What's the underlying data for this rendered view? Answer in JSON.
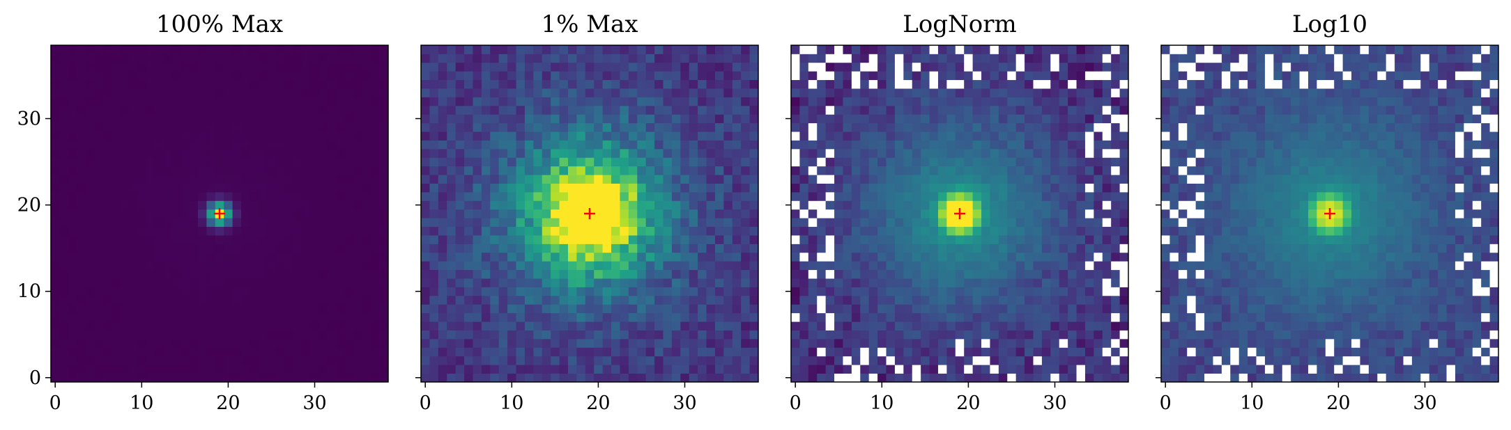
{
  "chart_data": [
    {
      "type": "heatmap",
      "title": "100% Max",
      "xlabel": "",
      "ylabel": "",
      "colormap": "viridis",
      "grid_size": [
        39,
        39
      ],
      "xlim": [
        -0.5,
        38.5
      ],
      "ylim": [
        -0.5,
        38.5
      ],
      "x_ticks": [
        0,
        10,
        20,
        30
      ],
      "y_ticks": [
        0,
        10,
        20,
        30
      ],
      "show_y_tick_labels": true,
      "grid": false,
      "peak_marker": {
        "x": 19,
        "y": 19,
        "symbol": "+",
        "color": "#ff0000"
      },
      "normalization": "linear, clipped at 100% of max"
    },
    {
      "type": "heatmap",
      "title": "1% Max",
      "xlabel": "",
      "ylabel": "",
      "colormap": "viridis",
      "grid_size": [
        39,
        39
      ],
      "xlim": [
        -0.5,
        38.5
      ],
      "ylim": [
        -0.5,
        38.5
      ],
      "x_ticks": [
        0,
        10,
        20,
        30
      ],
      "y_ticks": [
        0,
        10,
        20,
        30
      ],
      "show_y_tick_labels": false,
      "grid": false,
      "peak_marker": {
        "x": 19,
        "y": 19,
        "symbol": "+",
        "color": "#ff0000"
      },
      "normalization": "linear, clipped at 1% of max"
    },
    {
      "type": "heatmap",
      "title": "LogNorm",
      "xlabel": "",
      "ylabel": "",
      "colormap": "viridis",
      "grid_size": [
        39,
        39
      ],
      "xlim": [
        -0.5,
        38.5
      ],
      "ylim": [
        -0.5,
        38.5
      ],
      "x_ticks": [
        0,
        10,
        20,
        30
      ],
      "y_ticks": [
        0,
        10,
        20,
        30
      ],
      "show_y_tick_labels": false,
      "grid": false,
      "peak_marker": {
        "x": 19,
        "y": 19,
        "symbol": "+",
        "color": "#ff0000"
      },
      "normalization": "logarithmic; non-positive pixels shown as white"
    },
    {
      "type": "heatmap",
      "title": "Log10",
      "xlabel": "",
      "ylabel": "",
      "colormap": "viridis",
      "grid_size": [
        39,
        39
      ],
      "xlim": [
        -0.5,
        38.5
      ],
      "ylim": [
        -0.5,
        38.5
      ],
      "x_ticks": [
        0,
        10,
        20,
        30
      ],
      "y_ticks": [
        0,
        10,
        20,
        30
      ],
      "show_y_tick_labels": false,
      "grid": false,
      "peak_marker": {
        "x": 19,
        "y": 19,
        "symbol": "+",
        "color": "#ff0000"
      },
      "normalization": "log10 of data; non-positive pixels shown as white"
    }
  ]
}
